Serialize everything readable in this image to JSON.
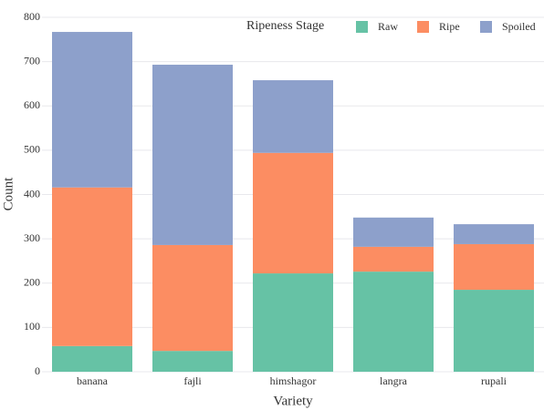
{
  "chart_data": {
    "type": "stacked_bar",
    "x_label": "Variety",
    "y_label": "Count",
    "legend_title": "Ripeness Stage",
    "categories": [
      "banana",
      "fajli",
      "himshagor",
      "langra",
      "rupali"
    ],
    "series": [
      {
        "name": "Raw",
        "color": "#66c2a5",
        "values": [
          58,
          47,
          222,
          226,
          185
        ]
      },
      {
        "name": "Ripe",
        "color": "#fc8d62",
        "values": [
          358,
          239,
          272,
          56,
          103
        ]
      },
      {
        "name": "Spoiled",
        "color": "#8da0cb",
        "values": [
          351,
          407,
          164,
          66,
          45
        ]
      }
    ],
    "ylim": [
      0,
      800
    ],
    "yticks": [
      0,
      100,
      200,
      300,
      400,
      500,
      600,
      700,
      800
    ],
    "grid": true
  }
}
